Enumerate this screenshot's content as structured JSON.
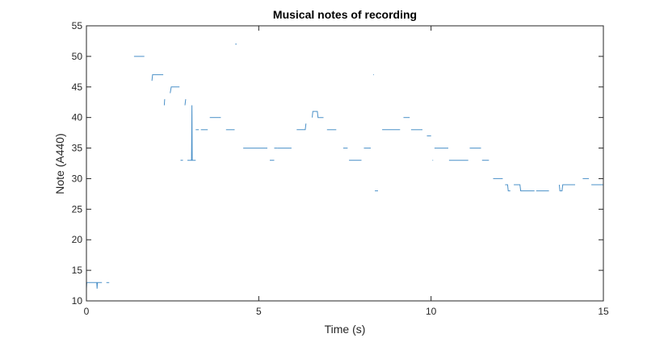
{
  "chart_data": {
    "type": "line",
    "title": "Musical notes of recording",
    "xlabel": "Time (s)",
    "ylabel": "Note (A440)",
    "xlim": [
      0,
      15
    ],
    "ylim": [
      10,
      55
    ],
    "xticks": [
      0,
      5,
      10,
      15
    ],
    "yticks": [
      10,
      15,
      20,
      25,
      30,
      35,
      40,
      45,
      50,
      55
    ],
    "grid": false,
    "legend": "none",
    "box": true,
    "colors": {
      "line": "#4a90c8",
      "axis": "#262626",
      "background": "#ffffff"
    },
    "series": [
      {
        "segments": [
          [
            [
              0.0,
              12
            ],
            [
              0.01,
              13
            ],
            [
              0.3,
              13
            ],
            [
              0.31,
              12
            ],
            [
              0.32,
              13
            ],
            [
              0.45,
              13
            ]
          ],
          [
            [
              0.58,
              13
            ],
            [
              0.66,
              13
            ]
          ],
          [
            [
              1.38,
              50
            ],
            [
              1.68,
              50
            ]
          ],
          [
            [
              1.9,
              46
            ],
            [
              1.92,
              47
            ],
            [
              2.23,
              47
            ]
          ],
          [
            [
              2.26,
              42
            ],
            [
              2.27,
              43
            ]
          ],
          [
            [
              2.43,
              44
            ],
            [
              2.46,
              45
            ],
            [
              2.7,
              45
            ]
          ],
          [
            [
              2.86,
              42
            ],
            [
              2.88,
              43
            ]
          ],
          [
            [
              2.73,
              33
            ],
            [
              2.8,
              33
            ]
          ],
          [
            [
              2.93,
              33
            ],
            [
              3.05,
              33
            ],
            [
              3.06,
              42
            ],
            [
              3.07,
              33
            ],
            [
              3.17,
              33
            ]
          ],
          [
            [
              3.17,
              38
            ],
            [
              3.26,
              38
            ]
          ],
          [
            [
              3.32,
              38
            ],
            [
              3.52,
              38
            ]
          ],
          [
            [
              3.58,
              40
            ],
            [
              3.9,
              40
            ]
          ],
          [
            [
              4.05,
              38
            ],
            [
              4.3,
              38
            ]
          ],
          [
            [
              4.32,
              52
            ],
            [
              4.36,
              52
            ]
          ],
          [
            [
              4.55,
              35
            ],
            [
              5.25,
              35
            ]
          ],
          [
            [
              5.32,
              33
            ],
            [
              5.45,
              33
            ]
          ],
          [
            [
              5.45,
              35
            ],
            [
              5.55,
              35
            ]
          ],
          [
            [
              5.55,
              35
            ],
            [
              5.95,
              35
            ]
          ],
          [
            [
              6.1,
              38
            ],
            [
              6.35,
              38
            ],
            [
              6.37,
              39
            ]
          ],
          [
            [
              6.55,
              40
            ],
            [
              6.57,
              41
            ],
            [
              6.7,
              41
            ],
            [
              6.72,
              40
            ],
            [
              6.88,
              40
            ]
          ],
          [
            [
              6.98,
              38
            ],
            [
              7.25,
              38
            ]
          ],
          [
            [
              7.45,
              35
            ],
            [
              7.58,
              35
            ]
          ],
          [
            [
              7.62,
              33
            ],
            [
              7.98,
              33
            ]
          ],
          [
            [
              8.05,
              35
            ],
            [
              8.25,
              35
            ]
          ],
          [
            [
              8.32,
              47
            ],
            [
              8.34,
              47
            ]
          ],
          [
            [
              8.37,
              28
            ],
            [
              8.46,
              28
            ]
          ],
          [
            [
              8.58,
              38
            ],
            [
              9.1,
              38
            ]
          ],
          [
            [
              9.2,
              40
            ],
            [
              9.38,
              40
            ]
          ],
          [
            [
              9.42,
              38
            ],
            [
              9.75,
              38
            ]
          ],
          [
            [
              9.88,
              37
            ],
            [
              10.0,
              37
            ]
          ],
          [
            [
              10.04,
              33
            ],
            [
              10.06,
              33
            ]
          ],
          [
            [
              10.1,
              35
            ],
            [
              10.5,
              35
            ]
          ],
          [
            [
              10.52,
              33
            ],
            [
              11.08,
              33
            ]
          ],
          [
            [
              11.12,
              35
            ],
            [
              11.45,
              35
            ]
          ],
          [
            [
              11.48,
              33
            ],
            [
              11.68,
              33
            ]
          ],
          [
            [
              11.8,
              30
            ],
            [
              12.08,
              30
            ]
          ],
          [
            [
              12.15,
              29
            ],
            [
              12.22,
              29
            ],
            [
              12.24,
              28
            ],
            [
              12.3,
              28
            ]
          ],
          [
            [
              12.4,
              29
            ],
            [
              12.58,
              29
            ],
            [
              12.6,
              28
            ],
            [
              13.0,
              28
            ]
          ],
          [
            [
              13.05,
              28
            ],
            [
              13.42,
              28
            ]
          ],
          [
            [
              13.72,
              29
            ],
            [
              13.74,
              28
            ],
            [
              13.8,
              28
            ],
            [
              13.82,
              29
            ],
            [
              14.18,
              29
            ]
          ],
          [
            [
              14.4,
              30
            ],
            [
              14.58,
              30
            ]
          ],
          [
            [
              14.65,
              29
            ],
            [
              15.0,
              29
            ]
          ]
        ]
      }
    ]
  }
}
